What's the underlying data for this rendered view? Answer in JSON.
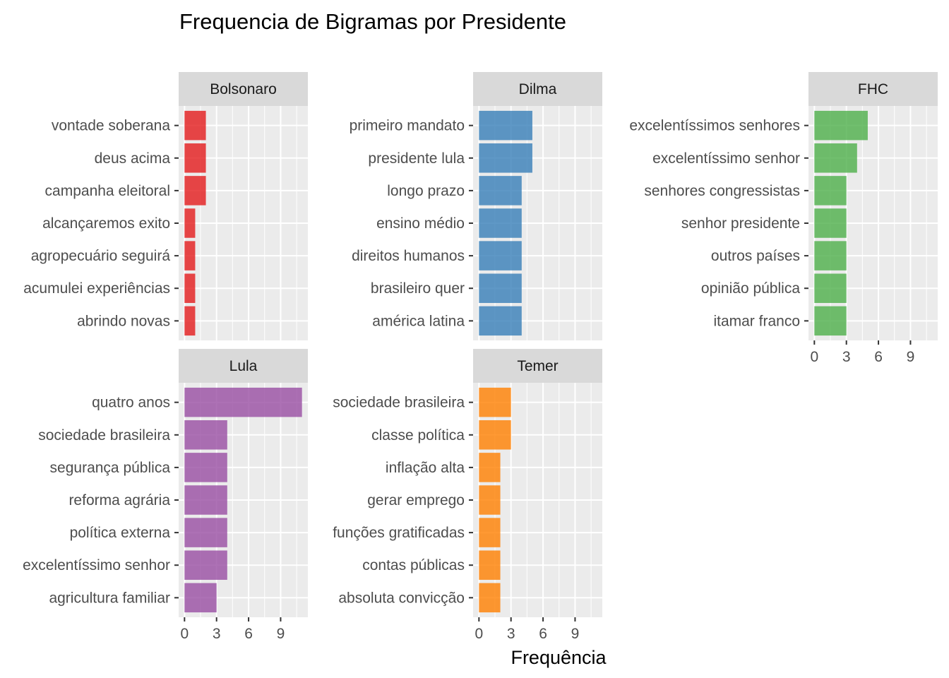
{
  "chart_data": {
    "type": "bar",
    "title": "Frequencia de Bigramas por Presidente",
    "xlabel": "Frequência",
    "ylabel": "",
    "xlim": [
      -0.55,
      11.55
    ],
    "x_ticks": [
      "0",
      "3",
      "6",
      "9"
    ],
    "grid": true,
    "panels": [
      {
        "name": "Bolsonaro",
        "color": "#e41a1c",
        "categories": [
          "vontade soberana",
          "deus acima",
          "campanha eleitoral",
          "alcançaremos exito",
          "agropecuário seguirá",
          "acumulei experiências",
          "abrindo novas"
        ],
        "values": [
          2,
          2,
          2,
          1,
          1,
          1,
          1
        ]
      },
      {
        "name": "Dilma",
        "color": "#377eb8",
        "categories": [
          "primeiro mandato",
          "presidente lula",
          "longo prazo",
          "ensino médio",
          "direitos humanos",
          "brasileiro quer",
          "américa latina"
        ],
        "values": [
          5,
          5,
          4,
          4,
          4,
          4,
          4
        ]
      },
      {
        "name": "FHC",
        "color": "#4daf4a",
        "categories": [
          "excelentíssimos senhores",
          "excelentíssimo senhor",
          "senhores congressistas",
          "senhor presidente",
          "outros países",
          "opinião pública",
          "itamar franco"
        ],
        "values": [
          5,
          4,
          3,
          3,
          3,
          3,
          3
        ]
      },
      {
        "name": "Lula",
        "color": "#984ea3",
        "categories": [
          "quatro anos",
          "sociedade brasileira",
          "segurança pública",
          "reforma agrária",
          "política externa",
          "excelentíssimo senhor",
          "agricultura familiar"
        ],
        "values": [
          11,
          4,
          4,
          4,
          4,
          4,
          3
        ]
      },
      {
        "name": "Temer",
        "color": "#ff7f00",
        "categories": [
          "sociedade brasileira",
          "classe política",
          "inflação alta",
          "gerar emprego",
          "funções gratificadas",
          "contas públicas",
          "absoluta convicção"
        ],
        "values": [
          3,
          3,
          2,
          2,
          2,
          2,
          2
        ]
      }
    ]
  }
}
